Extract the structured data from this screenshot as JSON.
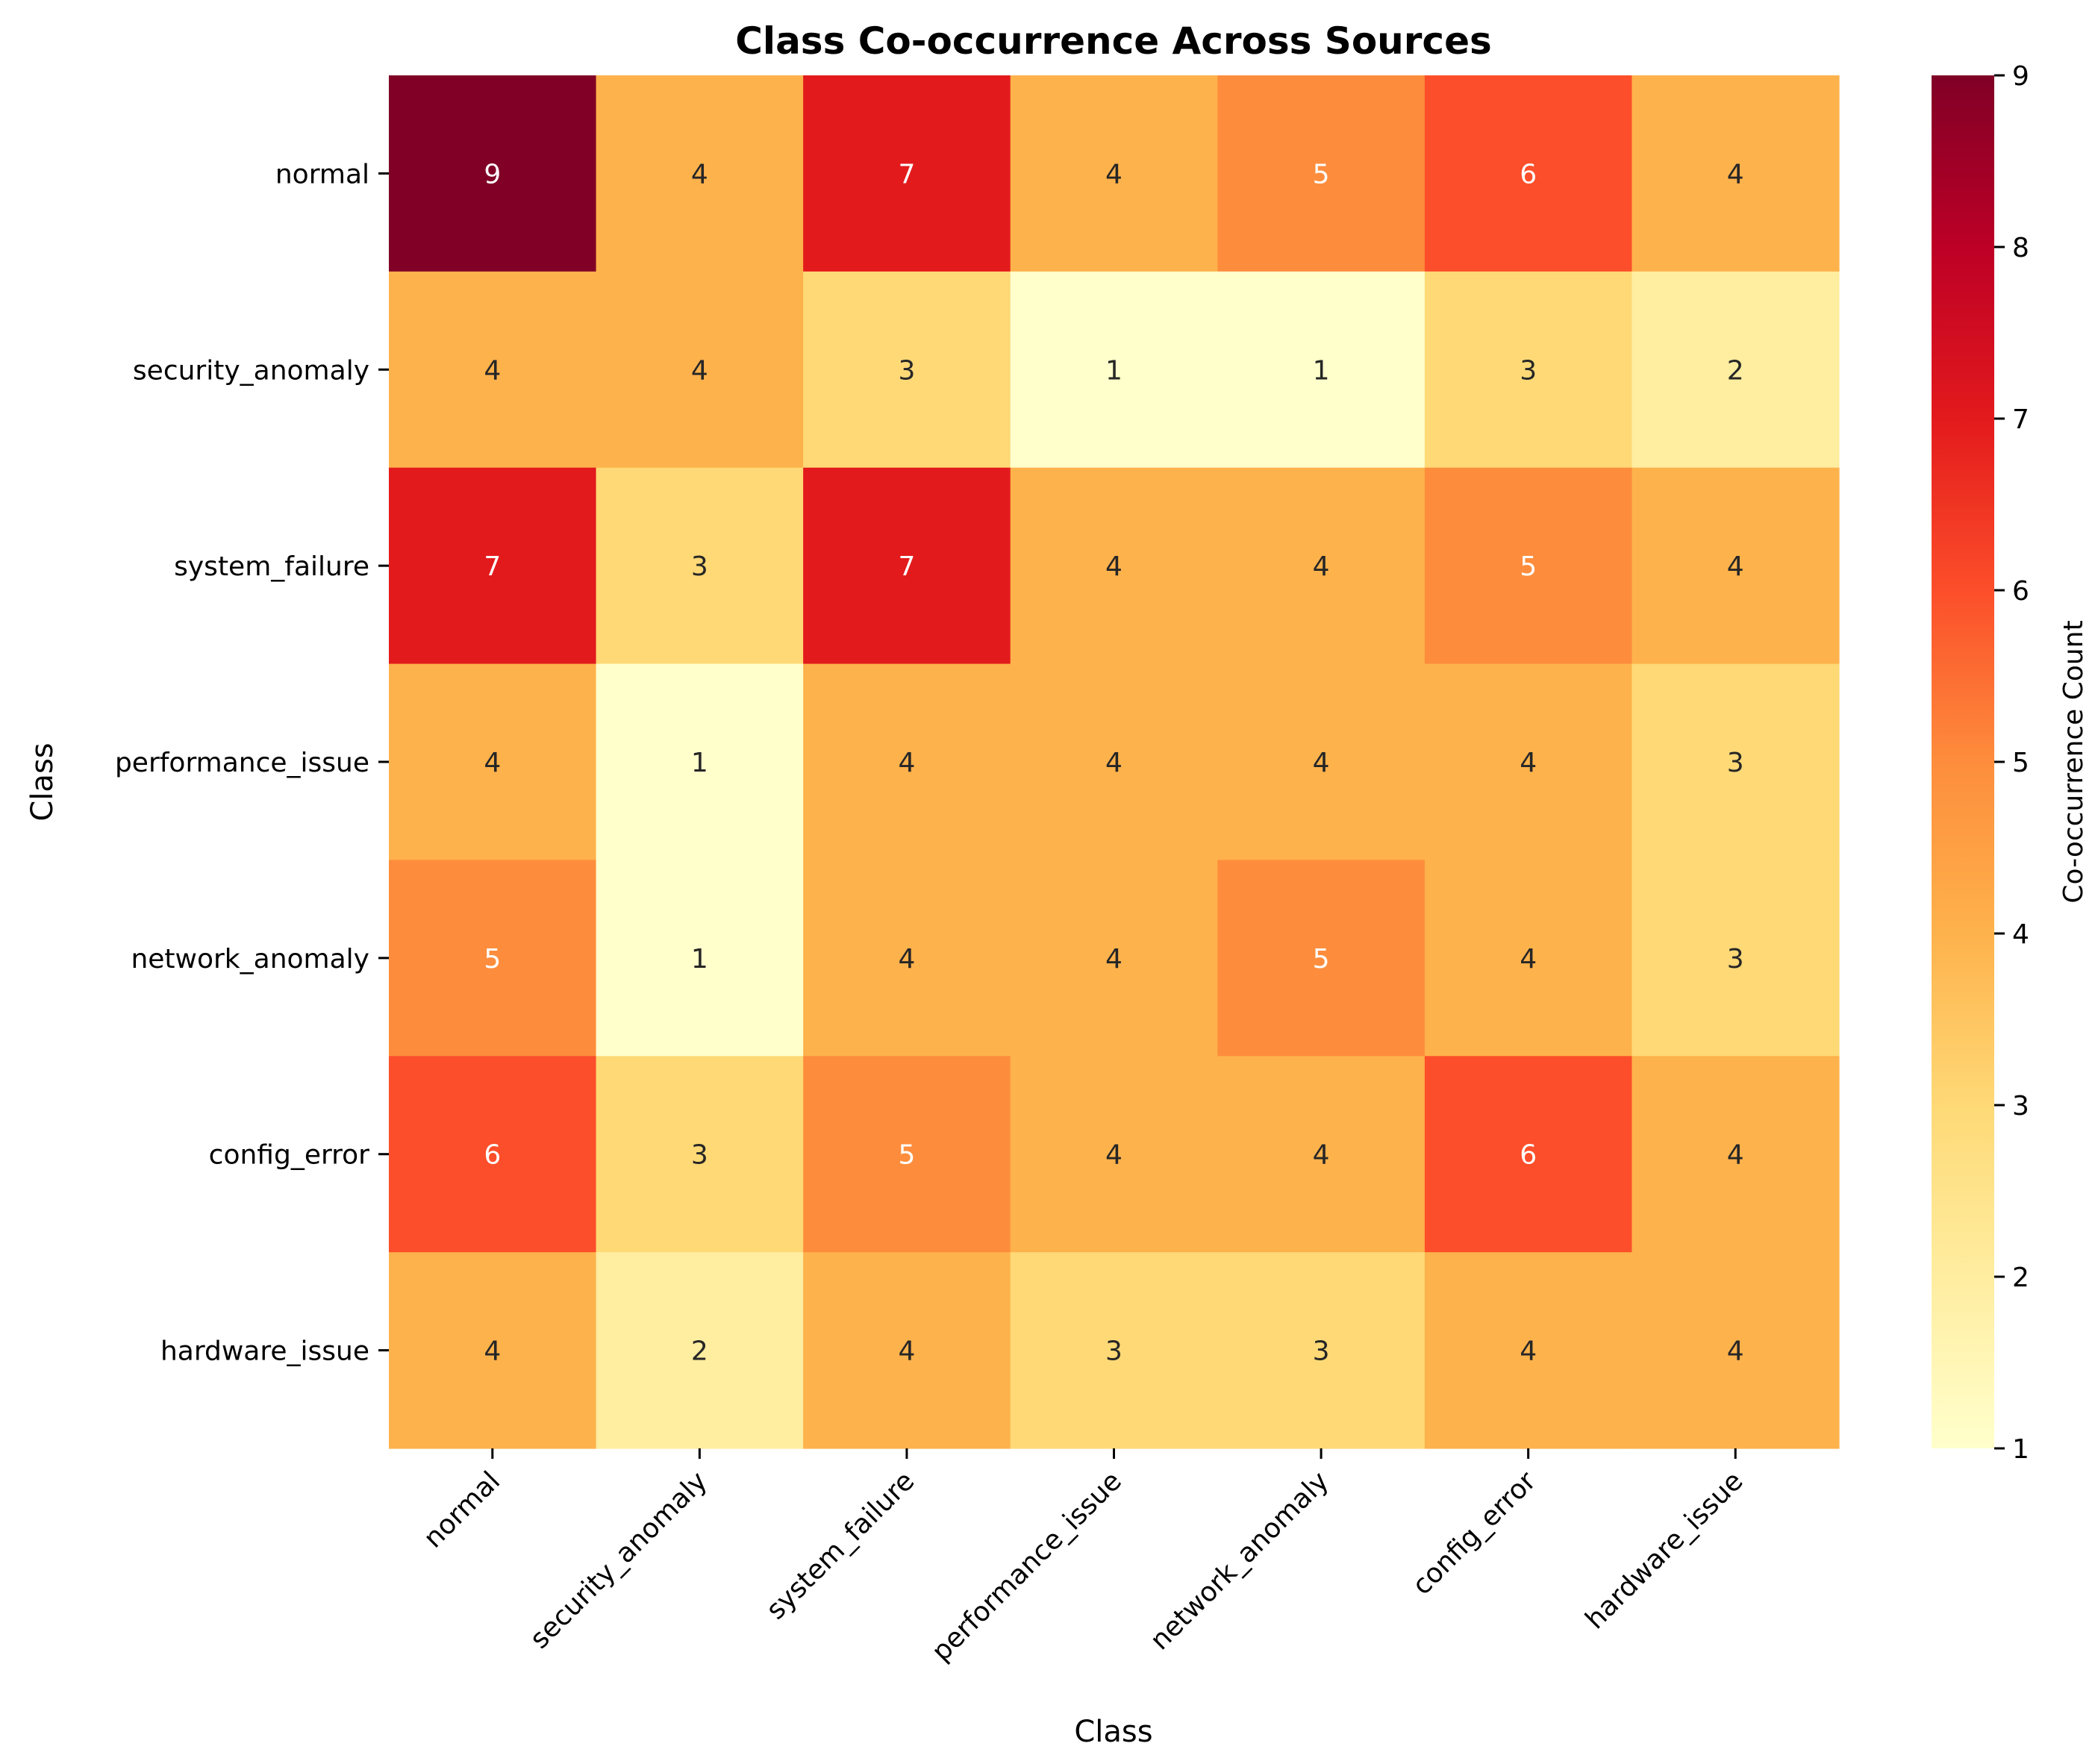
{
  "chart_data": {
    "type": "heatmap",
    "title": "Class Co-occurrence Across Sources",
    "xlabel": "Class",
    "ylabel": "Class",
    "x_categories": [
      "normal",
      "security_anomaly",
      "system_failure",
      "performance_issue",
      "network_anomaly",
      "config_error",
      "hardware_issue"
    ],
    "y_categories": [
      "normal",
      "security_anomaly",
      "system_failure",
      "performance_issue",
      "network_anomaly",
      "config_error",
      "hardware_issue"
    ],
    "values": [
      [
        9,
        4,
        7,
        4,
        5,
        6,
        4
      ],
      [
        4,
        4,
        3,
        1,
        1,
        3,
        2
      ],
      [
        7,
        3,
        7,
        4,
        4,
        5,
        4
      ],
      [
        4,
        1,
        4,
        4,
        4,
        4,
        3
      ],
      [
        5,
        1,
        4,
        4,
        5,
        4,
        3
      ],
      [
        6,
        3,
        5,
        4,
        4,
        6,
        4
      ],
      [
        4,
        2,
        4,
        3,
        3,
        4,
        4
      ]
    ],
    "colorscale": "YlOrRd",
    "vmin": 1,
    "vmax": 9,
    "colorbar": {
      "label": "Co-occurrence Count",
      "ticks": [
        "1",
        "2",
        "3",
        "4",
        "5",
        "6",
        "7",
        "8",
        "9"
      ]
    },
    "annotated": true
  }
}
